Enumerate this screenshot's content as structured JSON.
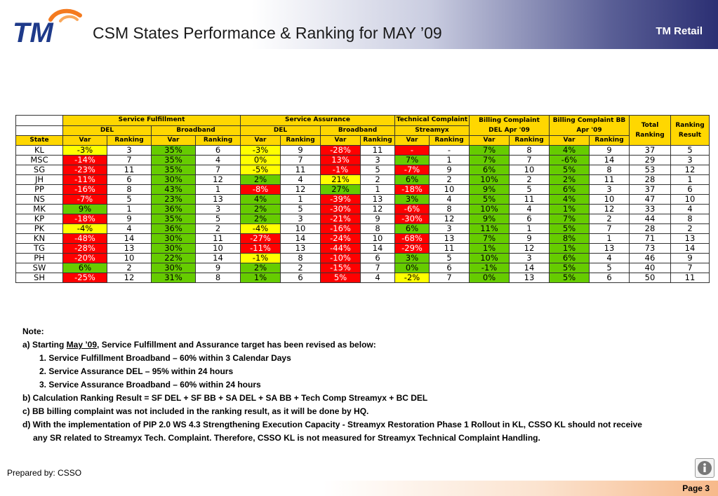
{
  "header": {
    "title": "CSM States Performance & Ranking for MAY ’09",
    "brand": "TM Retail",
    "logo_text": "TM"
  },
  "table": {
    "groups": {
      "sf": "Service Fulfillment",
      "sa": "Service Assurance",
      "tc": "Technical Complaint",
      "bc_del": [
        "Billing Complaint",
        "DEL Apr '09"
      ],
      "bc_bb": [
        "Billing Complaint BB",
        "Apr '09"
      ],
      "total": [
        "Total",
        "Ranking"
      ],
      "result": [
        "Ranking",
        "Result"
      ]
    },
    "sub": {
      "del": "DEL",
      "bb": "Broadband",
      "streamyx": "Streamyx"
    },
    "cols": {
      "state": "State",
      "var": "Var",
      "rank": "Ranking"
    },
    "rows": [
      {
        "s": "KL",
        "c": [
          [
            "-3%",
            "y"
          ],
          [
            "3",
            ""
          ],
          [
            "35%",
            "g"
          ],
          [
            "6",
            ""
          ],
          [
            "-3%",
            "y"
          ],
          [
            "9",
            ""
          ],
          [
            "-28%",
            "r"
          ],
          [
            "11",
            ""
          ],
          [
            "-",
            "r"
          ],
          [
            "-",
            ""
          ],
          [
            "7%",
            "g"
          ],
          [
            "8",
            ""
          ],
          [
            "4%",
            "g"
          ],
          [
            "9",
            ""
          ],
          [
            "37",
            ""
          ],
          [
            "5",
            ""
          ]
        ]
      },
      {
        "s": "MSC",
        "c": [
          [
            "-14%",
            "r"
          ],
          [
            "7",
            ""
          ],
          [
            "35%",
            "g"
          ],
          [
            "4",
            ""
          ],
          [
            "0%",
            "y"
          ],
          [
            "7",
            ""
          ],
          [
            "13%",
            "r"
          ],
          [
            "3",
            ""
          ],
          [
            "7%",
            "g"
          ],
          [
            "1",
            ""
          ],
          [
            "7%",
            "g"
          ],
          [
            "7",
            ""
          ],
          [
            "-6%",
            "g"
          ],
          [
            "14",
            ""
          ],
          [
            "29",
            ""
          ],
          [
            "3",
            ""
          ]
        ]
      },
      {
        "s": "SG",
        "c": [
          [
            "-23%",
            "r"
          ],
          [
            "11",
            ""
          ],
          [
            "35%",
            "g"
          ],
          [
            "7",
            ""
          ],
          [
            "-5%",
            "y"
          ],
          [
            "11",
            ""
          ],
          [
            "-1%",
            "r"
          ],
          [
            "5",
            ""
          ],
          [
            "-7%",
            "r"
          ],
          [
            "9",
            ""
          ],
          [
            "6%",
            "g"
          ],
          [
            "10",
            ""
          ],
          [
            "5%",
            "g"
          ],
          [
            "8",
            ""
          ],
          [
            "53",
            ""
          ],
          [
            "12",
            ""
          ]
        ]
      },
      {
        "s": "JH",
        "c": [
          [
            "-11%",
            "r"
          ],
          [
            "6",
            ""
          ],
          [
            "30%",
            "g"
          ],
          [
            "12",
            ""
          ],
          [
            "2%",
            "g"
          ],
          [
            "4",
            ""
          ],
          [
            "21%",
            "y"
          ],
          [
            "2",
            ""
          ],
          [
            "6%",
            "g"
          ],
          [
            "2",
            ""
          ],
          [
            "10%",
            "g"
          ],
          [
            "2",
            ""
          ],
          [
            "2%",
            "g"
          ],
          [
            "11",
            ""
          ],
          [
            "28",
            ""
          ],
          [
            "1",
            ""
          ]
        ]
      },
      {
        "s": "PP",
        "c": [
          [
            "-16%",
            "r"
          ],
          [
            "8",
            ""
          ],
          [
            "43%",
            "g"
          ],
          [
            "1",
            ""
          ],
          [
            "-8%",
            "r"
          ],
          [
            "12",
            ""
          ],
          [
            "27%",
            "g"
          ],
          [
            "1",
            ""
          ],
          [
            "-18%",
            "r"
          ],
          [
            "10",
            ""
          ],
          [
            "9%",
            "g"
          ],
          [
            "5",
            ""
          ],
          [
            "6%",
            "g"
          ],
          [
            "3",
            ""
          ],
          [
            "37",
            ""
          ],
          [
            "6",
            ""
          ]
        ]
      },
      {
        "s": "NS",
        "c": [
          [
            "-7%",
            "r"
          ],
          [
            "5",
            ""
          ],
          [
            "23%",
            "g"
          ],
          [
            "13",
            ""
          ],
          [
            "4%",
            "g"
          ],
          [
            "1",
            ""
          ],
          [
            "-39%",
            "r"
          ],
          [
            "13",
            ""
          ],
          [
            "3%",
            "g"
          ],
          [
            "4",
            ""
          ],
          [
            "5%",
            "g"
          ],
          [
            "11",
            ""
          ],
          [
            "4%",
            "g"
          ],
          [
            "10",
            ""
          ],
          [
            "47",
            ""
          ],
          [
            "10",
            ""
          ]
        ]
      },
      {
        "s": "MK",
        "c": [
          [
            "9%",
            "g"
          ],
          [
            "1",
            ""
          ],
          [
            "36%",
            "g"
          ],
          [
            "3",
            ""
          ],
          [
            "2%",
            "g"
          ],
          [
            "5",
            ""
          ],
          [
            "-30%",
            "r"
          ],
          [
            "12",
            ""
          ],
          [
            "-6%",
            "r"
          ],
          [
            "8",
            ""
          ],
          [
            "10%",
            "g"
          ],
          [
            "4",
            ""
          ],
          [
            "1%",
            "g"
          ],
          [
            "12",
            ""
          ],
          [
            "33",
            ""
          ],
          [
            "4",
            ""
          ]
        ]
      },
      {
        "s": "KP",
        "c": [
          [
            "-18%",
            "r"
          ],
          [
            "9",
            ""
          ],
          [
            "35%",
            "g"
          ],
          [
            "5",
            ""
          ],
          [
            "2%",
            "g"
          ],
          [
            "3",
            ""
          ],
          [
            "-21%",
            "r"
          ],
          [
            "9",
            ""
          ],
          [
            "-30%",
            "r"
          ],
          [
            "12",
            ""
          ],
          [
            "9%",
            "g"
          ],
          [
            "6",
            ""
          ],
          [
            "7%",
            "g"
          ],
          [
            "2",
            ""
          ],
          [
            "44",
            ""
          ],
          [
            "8",
            ""
          ]
        ]
      },
      {
        "s": "PK",
        "c": [
          [
            "-4%",
            "y"
          ],
          [
            "4",
            ""
          ],
          [
            "36%",
            "g"
          ],
          [
            "2",
            ""
          ],
          [
            "-4%",
            "y"
          ],
          [
            "10",
            ""
          ],
          [
            "-16%",
            "r"
          ],
          [
            "8",
            ""
          ],
          [
            "6%",
            "g"
          ],
          [
            "3",
            ""
          ],
          [
            "11%",
            "g"
          ],
          [
            "1",
            ""
          ],
          [
            "5%",
            "g"
          ],
          [
            "7",
            ""
          ],
          [
            "28",
            ""
          ],
          [
            "2",
            ""
          ]
        ]
      },
      {
        "s": "KN",
        "c": [
          [
            "-48%",
            "r"
          ],
          [
            "14",
            ""
          ],
          [
            "30%",
            "g"
          ],
          [
            "11",
            ""
          ],
          [
            "-27%",
            "r"
          ],
          [
            "14",
            ""
          ],
          [
            "-24%",
            "r"
          ],
          [
            "10",
            ""
          ],
          [
            "-68%",
            "r"
          ],
          [
            "13",
            ""
          ],
          [
            "7%",
            "g"
          ],
          [
            "9",
            ""
          ],
          [
            "8%",
            "g"
          ],
          [
            "1",
            ""
          ],
          [
            "71",
            ""
          ],
          [
            "13",
            ""
          ]
        ]
      },
      {
        "s": "TG",
        "c": [
          [
            "-28%",
            "r"
          ],
          [
            "13",
            ""
          ],
          [
            "30%",
            "g"
          ],
          [
            "10",
            ""
          ],
          [
            "-11%",
            "r"
          ],
          [
            "13",
            ""
          ],
          [
            "-44%",
            "r"
          ],
          [
            "14",
            ""
          ],
          [
            "-29%",
            "r"
          ],
          [
            "11",
            ""
          ],
          [
            "1%",
            "g"
          ],
          [
            "12",
            ""
          ],
          [
            "1%",
            "g"
          ],
          [
            "13",
            ""
          ],
          [
            "73",
            ""
          ],
          [
            "14",
            ""
          ]
        ]
      },
      {
        "s": "PH",
        "c": [
          [
            "-20%",
            "r"
          ],
          [
            "10",
            ""
          ],
          [
            "22%",
            "g"
          ],
          [
            "14",
            ""
          ],
          [
            "-1%",
            "y"
          ],
          [
            "8",
            ""
          ],
          [
            "-10%",
            "r"
          ],
          [
            "6",
            ""
          ],
          [
            "3%",
            "g"
          ],
          [
            "5",
            ""
          ],
          [
            "10%",
            "g"
          ],
          [
            "3",
            ""
          ],
          [
            "6%",
            "g"
          ],
          [
            "4",
            ""
          ],
          [
            "46",
            ""
          ],
          [
            "9",
            ""
          ]
        ]
      },
      {
        "s": "SW",
        "c": [
          [
            "6%",
            "g"
          ],
          [
            "2",
            ""
          ],
          [
            "30%",
            "g"
          ],
          [
            "9",
            ""
          ],
          [
            "2%",
            "g"
          ],
          [
            "2",
            ""
          ],
          [
            "-15%",
            "r"
          ],
          [
            "7",
            ""
          ],
          [
            "0%",
            "g"
          ],
          [
            "6",
            ""
          ],
          [
            "-1%",
            "g"
          ],
          [
            "14",
            ""
          ],
          [
            "5%",
            "g"
          ],
          [
            "5",
            ""
          ],
          [
            "40",
            ""
          ],
          [
            "7",
            ""
          ]
        ]
      },
      {
        "s": "SH",
        "c": [
          [
            "-25%",
            "r"
          ],
          [
            "12",
            ""
          ],
          [
            "31%",
            "g"
          ],
          [
            "8",
            ""
          ],
          [
            "1%",
            "g"
          ],
          [
            "6",
            ""
          ],
          [
            "5%",
            "r"
          ],
          [
            "4",
            ""
          ],
          [
            "-2%",
            "y"
          ],
          [
            "7",
            ""
          ],
          [
            "0%",
            "g"
          ],
          [
            "13",
            ""
          ],
          [
            "5%",
            "g"
          ],
          [
            "6",
            ""
          ],
          [
            "50",
            ""
          ],
          [
            "11",
            ""
          ]
        ]
      }
    ]
  },
  "notes": {
    "heading": "Note:",
    "a_prefix": "a) Starting ",
    "a_underline": "May ’09",
    "a_suffix": ", Service Fulfillment and Assurance target has been revised as below:",
    "a1": "1. Service Fulfillment Broadband – 60% within 3 Calendar Days",
    "a2": "2. Service Assurance DEL – 95% within 24 hours",
    "a3": "3. Service Assurance Broadband – 60% within 24 hours",
    "b": "b) Calculation Ranking Result = SF DEL + SF BB + SA DEL + SA BB + Tech Comp Streamyx + BC DEL",
    "c": "c) BB billing complaint was not included in the ranking result, as it will be done by HQ.",
    "d1": "d) With the implementation of PIP 2.0 WS 4.3 Strengthening Execution Capacity - Streamyx Restoration Phase 1 Rollout in KL, CSSO KL should not receive",
    "d2": "any SR related to Streamyx Tech. Complaint. Therefore, CSSO KL is not measured for Streamyx Technical Complaint Handling."
  },
  "footer": {
    "prepared": "Prepared by: CSSO",
    "page": "Page 3"
  },
  "colors": {
    "red": "#ff0000",
    "yellow": "#ffff00",
    "green": "#66cc00",
    "header_yellow": "#ffd700",
    "brand_navy": "#2b2f73"
  },
  "icons": {
    "info": "info-icon"
  }
}
